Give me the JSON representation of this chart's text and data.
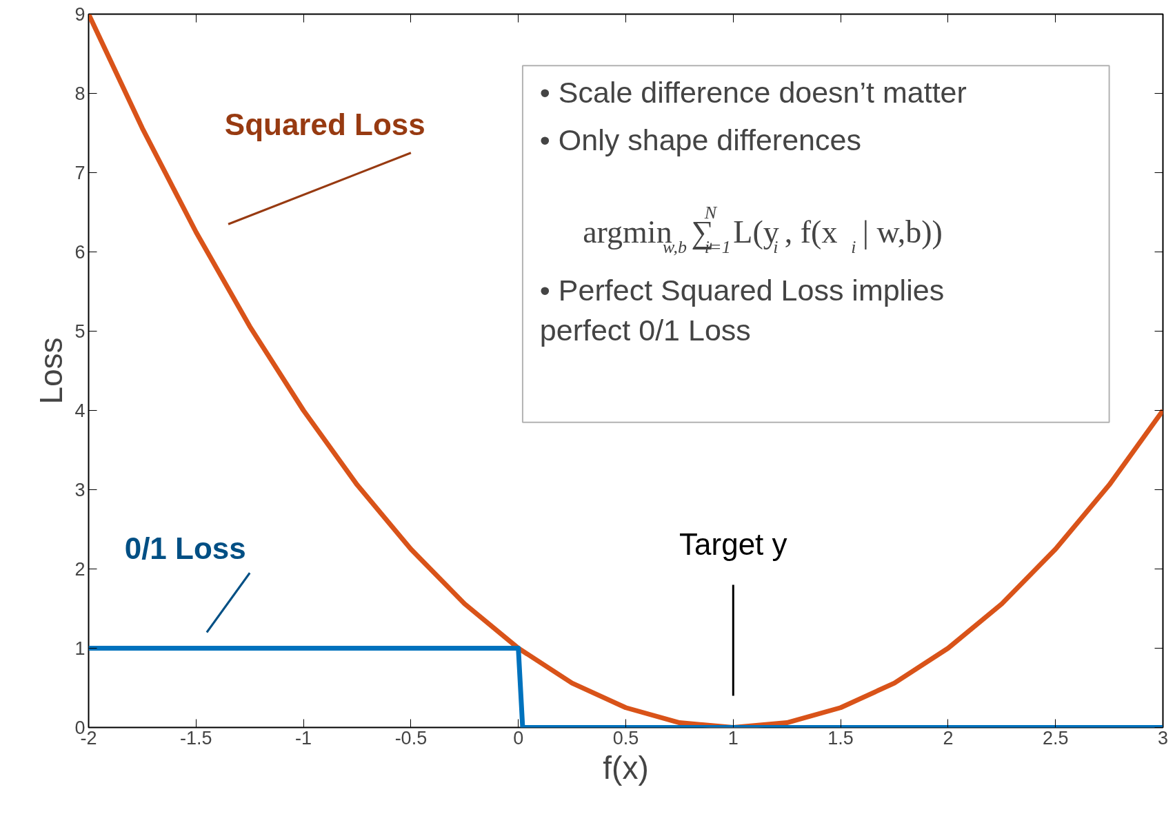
{
  "chart_data": {
    "type": "line",
    "xlabel": "f(x)",
    "ylabel": "Loss",
    "xlim": [
      -2,
      3
    ],
    "ylim": [
      0,
      9
    ],
    "xticks": [
      -2,
      -1.5,
      -1,
      -0.5,
      0,
      0.5,
      1,
      1.5,
      2,
      2.5,
      3
    ],
    "yticks": [
      0,
      1,
      2,
      3,
      4,
      5,
      6,
      7,
      8,
      9
    ],
    "grid": false,
    "line_style": "solid",
    "marker": "none",
    "series": [
      {
        "color": "#d95319",
        "x": [
          -2,
          -1.75,
          -1.5,
          -1.25,
          -1,
          -0.75,
          -0.5,
          -0.25,
          0,
          0.25,
          0.5,
          0.75,
          1,
          1.25,
          1.5,
          1.75,
          2,
          2.25,
          2.5,
          2.75,
          3
        ],
        "values": [
          9,
          7.56,
          6.25,
          5.06,
          4,
          3.06,
          2.25,
          1.56,
          1,
          0.56,
          0.25,
          0.06,
          0,
          0.06,
          0.25,
          0.56,
          1,
          1.56,
          2.25,
          3.06,
          4
        ]
      },
      {
        "color": "#0072bd",
        "x": [
          -2,
          0,
          0.02,
          3
        ],
        "values": [
          1,
          1,
          0,
          0
        ]
      }
    ],
    "annotations": [
      "Squared Loss",
      "0/1 Loss",
      "Target y",
      "•  Scale difference doesn’t matter",
      "•  Only shape differences",
      "argmin$_{w,b}$∑$^{N}$$_{i=1}$L(y$_{i}$, f(x$_{i}$ | w,b))",
      "•  Perfect Squared Loss implies\n    perfect 0/1 Loss"
    ]
  }
}
